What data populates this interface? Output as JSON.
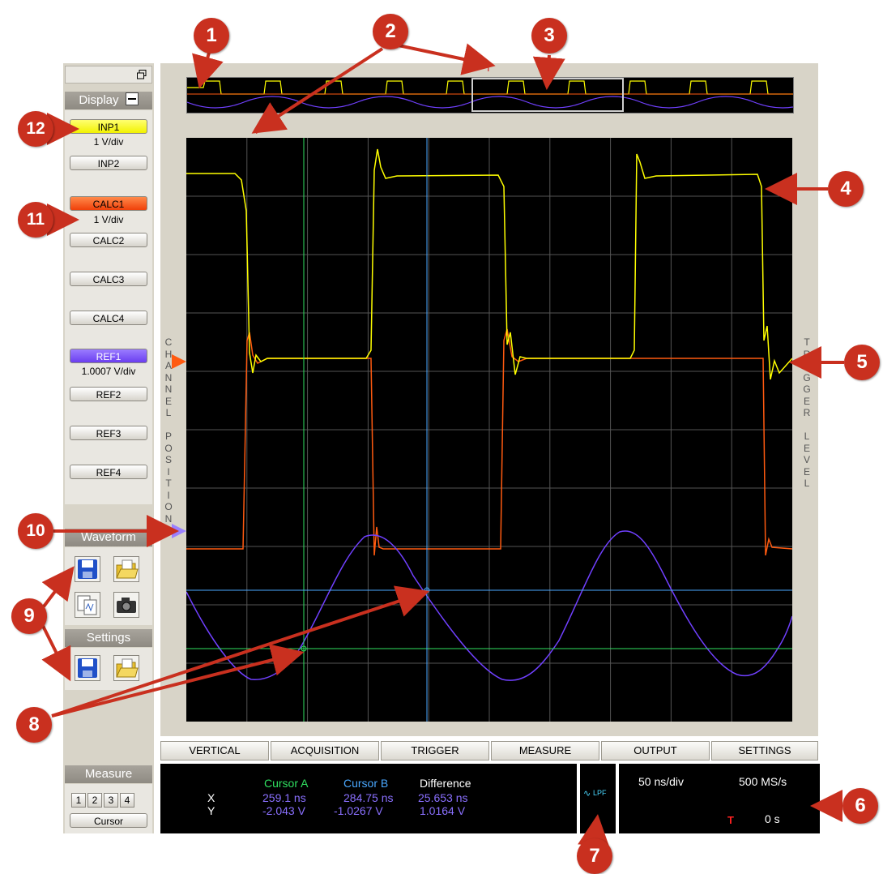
{
  "sidebar": {
    "display_header": "Display",
    "channels": [
      {
        "label": "INP1",
        "vdiv": "1 V/div"
      },
      {
        "label": "INP2"
      },
      {
        "label": "CALC1",
        "vdiv": "1 V/div"
      },
      {
        "label": "CALC2"
      },
      {
        "label": "CALC3"
      },
      {
        "label": "CALC4"
      },
      {
        "label": "REF1",
        "vdiv": "1.0007 V/div"
      },
      {
        "label": "REF2"
      },
      {
        "label": "REF3"
      },
      {
        "label": "REF4"
      }
    ],
    "waveform_header": "Waveform",
    "settings_header": "Settings",
    "measure_header": "Measure",
    "measure_buttons": [
      "1",
      "2",
      "3",
      "4"
    ],
    "cursor_button": "Cursor"
  },
  "scope": {
    "channel_position_label": "CHANNEL POSITION",
    "trigger_level_label": "TRIGGER LEVEL",
    "trigger_marker": "T"
  },
  "tabs": [
    "VERTICAL",
    "ACQUISITION",
    "TRIGGER",
    "MEASURE",
    "OUTPUT",
    "SETTINGS"
  ],
  "readout": {
    "col_a": "Cursor A",
    "col_b": "Cursor B",
    "col_diff": "Difference",
    "row_x": "X",
    "row_y": "Y",
    "x_a": "259.1 ns",
    "x_b": "284.75 ns",
    "x_diff": "25.653 ns",
    "y_a": "-2.043 V",
    "y_b": "-1.0267 V",
    "y_diff": "1.0164 V"
  },
  "filter": {
    "label": "LPF"
  },
  "timebase": {
    "time_div": "50 ns/div",
    "sample_rate": "500 MS/s",
    "trigger_symbol": "T",
    "trigger_delay": "0 s"
  },
  "annotations": [
    "1",
    "2",
    "3",
    "4",
    "5",
    "6",
    "7",
    "8",
    "9",
    "10",
    "11",
    "12"
  ],
  "colors": {
    "inp1": "#ffff00",
    "calc1": "#ff5a10",
    "ref1": "#7040ff",
    "cursor_a": "#30e060",
    "cursor_b": "#4aa8ff",
    "badge": "#c9301f"
  }
}
